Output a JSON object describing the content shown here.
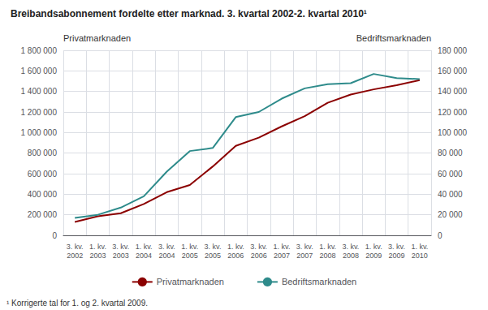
{
  "chart_data": {
    "type": "line",
    "title": "Breibandsabonnement fordelte etter marknad. 3. kvartal 2002-2. kvartal 2010¹",
    "ylabel": "Privatmarknaden",
    "y2label": "Bedriftsmarknaden",
    "footnote": "¹ Korrigerte tal for 1. og 2. kvartal 2009.",
    "categories": [
      "3. kv.\n2002",
      "1. kv.\n2003",
      "3. kv.\n2003",
      "1. kv.\n2004",
      "3. kv.\n2004",
      "1. kv.\n2005",
      "3. kv.\n2005",
      "1. kv.\n2006",
      "3. kv.\n2006",
      "1. kv.\n2007",
      "3. kv.\n2007",
      "1. kv.\n2008",
      "3. kv.\n2008",
      "1. kv.\n2009",
      "3. kv.\n2009",
      "1. kv.\n2010"
    ],
    "series": [
      {
        "name": "Privatmarknaden",
        "color": "#8B0000",
        "values": [
          130000,
          185000,
          215000,
          305000,
          420000,
          490000,
          670000,
          870000,
          950000,
          1060000,
          1160000,
          1290000,
          1370000,
          1420000,
          1460000,
          1510000
        ]
      },
      {
        "name": "Bedriftsmarknaden",
        "color": "#2E8B8B",
        "axis": "y2",
        "values": [
          17000,
          20000,
          27000,
          38000,
          62000,
          82000,
          85000,
          115000,
          120000,
          133000,
          143000,
          147000,
          148000,
          157000,
          153000,
          152000
        ]
      }
    ],
    "ylim": [
      0,
      1800000
    ],
    "yticks": [
      0,
      {
        "value": 200000,
        "label": "200 000"
      },
      {
        "value": 400000,
        "label": "400 000"
      },
      {
        "value": 600000,
        "label": "600 000"
      },
      {
        "value": 800000,
        "label": "800 000"
      },
      {
        "value": 1000000,
        "label": "1 000 000"
      },
      {
        "value": 1200000,
        "label": "1 200 000"
      },
      {
        "value": 1400000,
        "label": "1 400 000"
      },
      {
        "value": 1600000,
        "label": "1 600 000"
      },
      {
        "value": 1800000,
        "label": "1 800 000"
      }
    ],
    "y2lim": [
      0,
      180000
    ],
    "y2ticks": [
      0,
      {
        "value": 20000,
        "label": "20 000"
      },
      {
        "value": 40000,
        "label": "40 000"
      },
      {
        "value": 60000,
        "label": "60 000"
      },
      {
        "value": 80000,
        "label": "80 000"
      },
      {
        "value": 100000,
        "label": "100 000"
      },
      {
        "value": 120000,
        "label": "120 000"
      },
      {
        "value": 140000,
        "label": "140 000"
      },
      {
        "value": 160000,
        "label": "160 000"
      },
      {
        "value": 180000,
        "label": "180 000"
      }
    ],
    "grid": true,
    "legend": "bottom"
  }
}
